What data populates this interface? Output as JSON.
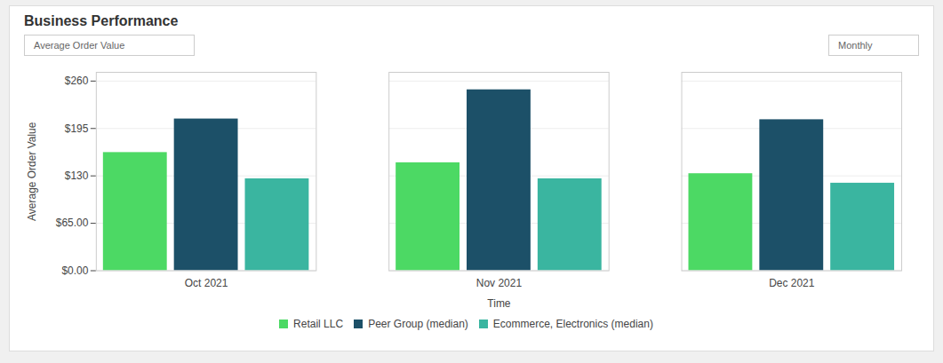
{
  "chart_data": {
    "type": "bar",
    "title": "Business Performance",
    "xlabel": "Time",
    "ylabel": "Average Order Value",
    "annotations": [
      "Average Order Value",
      "Monthly"
    ],
    "categories": [
      "Oct 2021",
      "Nov 2021",
      "Dec 2021"
    ],
    "series": [
      {
        "name": "Retail LLC",
        "color": "#4cd964",
        "values": [
          162,
          148,
          133
        ]
      },
      {
        "name": "Peer Group (median)",
        "color": "#1c5068",
        "values": [
          208,
          248,
          207
        ]
      },
      {
        "name": "Ecommerce, Electronics (median)",
        "color": "#3ab5a0",
        "values": [
          126,
          126,
          120
        ]
      }
    ],
    "ylim": [
      0,
      272
    ],
    "yticks": [
      {
        "value": 0,
        "label": "$0.00"
      },
      {
        "value": 65,
        "label": "$65.00"
      },
      {
        "value": 130,
        "label": "$130"
      },
      {
        "value": 195,
        "label": "$195"
      },
      {
        "value": 260,
        "label": "$260"
      }
    ],
    "grid": true,
    "legend": "bottom"
  }
}
